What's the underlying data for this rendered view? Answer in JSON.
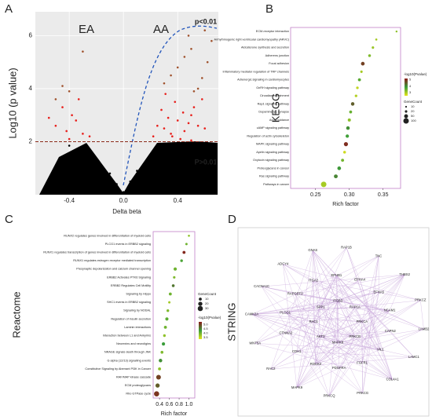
{
  "panel_labels": [
    "A",
    "B",
    "C",
    "D"
  ],
  "chart_data": [
    {
      "type": "scatter",
      "x_label": "Delta beta",
      "y_label": "Log10 (p value)",
      "annotations": [
        "EA",
        "AA",
        "p<0.01",
        "P>0.01"
      ],
      "xlim": [
        -0.65,
        0.7
      ],
      "ylim": [
        0,
        6.9
      ],
      "xticks": [
        -0.4,
        {
          "value": 0,
          "label": "0.0"
        },
        0.4
      ],
      "yticks": [
        2,
        4,
        6
      ],
      "threshold": 2,
      "series": [
        {
          "color": "#e8201c",
          "x": [
            0.22,
            0.3,
            0.35,
            0.4,
            0.45,
            0.5,
            0.55,
            0.28,
            0.33,
            0.38,
            0.42,
            0.48,
            0.52,
            0.6,
            0.25,
            0.31,
            0.36,
            0.44,
            0.5,
            0.58,
            -0.3,
            -0.35,
            -0.4,
            -0.45,
            -0.5,
            -0.25,
            -0.38,
            -0.42,
            -0.55,
            -0.33
          ],
          "y": [
            2.2,
            2.5,
            2.3,
            2.8,
            2.4,
            3.0,
            2.6,
            3.2,
            2.9,
            3.5,
            2.1,
            2.7,
            3.3,
            2.5,
            2.6,
            3.8,
            2.2,
            3.1,
            2.05,
            3.6,
            2.3,
            2.8,
            2.1,
            3.3,
            2.6,
            2.2,
            3.0,
            2.4,
            2.9,
            3.6
          ]
        },
        {
          "color": "#a0522d",
          "x": [
            0.3,
            0.4,
            0.5,
            0.55,
            0.6,
            0.45,
            0.35,
            0.62,
            0.48,
            0.58,
            0.52,
            0.65,
            -0.4,
            -0.5,
            -0.3,
            -0.45
          ],
          "y": [
            4.2,
            4.8,
            5.5,
            4.0,
            6.2,
            5.2,
            4.5,
            5.0,
            6.0,
            4.4,
            3.9,
            5.8,
            3.9,
            3.6,
            5.4,
            4.1
          ]
        },
        {
          "color": "#000000",
          "x": [
            -0.3,
            -0.2,
            -0.1,
            -0.05,
            0.05,
            0.1,
            0.2,
            0.3,
            0.4,
            0.5,
            -0.4,
            -0.15,
            0.15,
            0.25,
            0.35,
            0.45,
            -0.25,
            0.0
          ],
          "y": [
            1.5,
            1.2,
            0.8,
            0.4,
            0.5,
            0.9,
            1.3,
            1.6,
            1.8,
            1.9,
            1.85,
            1.0,
            1.1,
            1.4,
            1.7,
            1.5,
            1.7,
            0.1
          ]
        }
      ]
    },
    {
      "type": "dot",
      "y_label": "KEGG",
      "x_label": "Rich factor",
      "categories": [
        "ECM-receptor interaction",
        "Arrhythmogenic right ventricular cardiomyopathy (ARVC)",
        "Aldosterone synthesis and secretion",
        "Adherens junction",
        "Focal adhesion",
        "Inflammatory mediator regulation of TRP channels",
        "Adrenergic signaling in cardiomyocytes",
        "GnRH signaling pathway",
        "Circadian entrainment",
        "Rap1 signaling pathway",
        "Dopaminergic synapse",
        "Axon guidance",
        "cAMP signaling pathway",
        "Regulation of actin cytoskeleton",
        "MAPK signaling pathway",
        "Apelin signaling pathway",
        "Oxytocin signaling pathway",
        "Proteoglycans in cancer",
        "Ras signaling pathway",
        "Pathways in cancer"
      ],
      "values": [
        0.37,
        0.34,
        0.335,
        0.33,
        0.32,
        0.318,
        0.315,
        0.312,
        0.31,
        0.305,
        0.302,
        0.3,
        0.298,
        0.297,
        0.295,
        0.293,
        0.29,
        0.285,
        0.28,
        0.262
      ],
      "gene_counts": [
        12,
        15,
        20,
        25,
        45,
        20,
        30,
        22,
        22,
        40,
        28,
        32,
        42,
        38,
        55,
        25,
        30,
        45,
        48,
        100
      ],
      "pvalues": [
        3.2,
        3.0,
        3.1,
        3.3,
        4.8,
        3.0,
        3.6,
        2.8,
        2.9,
        4.5,
        3.5,
        3.2,
        4.0,
        3.8,
        5.0,
        2.7,
        3.4,
        3.9,
        4.1,
        3.0
      ],
      "xlim": [
        0.213,
        0.376
      ],
      "xticks": [
        0.25,
        {
          "value": 0.3,
          "label": "0.30"
        },
        0.35
      ],
      "color_title": "-log10(Pvalue)",
      "color_ticks": [
        5,
        4,
        3
      ],
      "clim": [
        2.5,
        5.2
      ],
      "size_title": "GeneCount",
      "size_ticks": [
        10,
        20,
        50,
        100
      ],
      "color_scale": [
        "#e6e619",
        "#3a9d3a",
        "#8b1a1a"
      ]
    },
    {
      "type": "dot",
      "y_label": "Reactome",
      "x_label": "Rich factor",
      "categories": [
        "RUNX2 regulates genes involved in differentiation of myeloid cells",
        "PLCG1 events in ERBB2 signaling",
        "RUNX1 regulates transcription of genes involved in differentiation of myeloid cells",
        "RUNX1 regulates estrogen receptor mediated transcription",
        "Presynaptic depolarization and calcium channel opening",
        "ERBB2 Activates PTK6 Signaling",
        "ERBB2 Regulates Cell Motility",
        "Signaling by Hippo",
        "SHC1 events in ERBB2 signaling",
        "Signaling by NODAL",
        "Regulation of insulin secretion",
        "Laminin interactions",
        "Interaction between L1 and Ankyrins",
        "Neurexins and neuroligins",
        "NRAGE signals death through JNK",
        "G alpha (12/13) signalling events",
        "Constitutive Signaling by Aberrant PI3K in Cancer",
        "RAF/MAP kinase cascade",
        "ECM proteoglycans",
        "Rho GTPase cycle"
      ],
      "values": [
        1.0,
        0.95,
        0.9,
        0.85,
        0.72,
        0.7,
        0.68,
        0.62,
        0.6,
        0.57,
        0.55,
        0.52,
        0.5,
        0.48,
        0.45,
        0.42,
        0.4,
        0.38,
        0.36,
        0.34
      ],
      "gene_counts": [
        5,
        6,
        10,
        8,
        12,
        7,
        9,
        10,
        6,
        8,
        12,
        10,
        8,
        12,
        9,
        14,
        10,
        25,
        20,
        30
      ],
      "pvalues": [
        3.8,
        4.0,
        5.2,
        4.2,
        4.0,
        3.9,
        4.6,
        4.0,
        3.7,
        3.9,
        4.1,
        4.0,
        3.8,
        4.3,
        3.9,
        4.4,
        3.8,
        5.0,
        4.8,
        5.1
      ],
      "xlim": [
        0.27,
        1.12
      ],
      "xticks": [
        0.4,
        0.6,
        0.8,
        {
          "value": 1,
          "label": "1.0"
        }
      ],
      "size_title": "GeneCount",
      "size_ticks": [
        10,
        20,
        30
      ],
      "color_title": "-log10(Pvalue)",
      "color_ticks": [
        {
          "value": 5,
          "label": "5.0"
        },
        4.5,
        {
          "value": 4,
          "label": "4.0"
        },
        3.5
      ],
      "clim": [
        3.3,
        5.3
      ],
      "color_scale": [
        "#e6e619",
        "#3a9d3a",
        "#8b1a1a"
      ]
    }
  ],
  "network": {
    "title": "STRING",
    "nodes": [
      "PRKCA",
      "PRKCB",
      "MAPK8",
      "AKT3",
      "RAC1",
      "SPP1",
      "ITGB3",
      "RAP1A",
      "CAPN2",
      "VIL1",
      "FGFR1",
      "PDGFRA",
      "ROCK2",
      "CDH1",
      "CTNNA2",
      "PLCG1",
      "RAPGEF3",
      "ITGA2",
      "EPHB1",
      "EPHA4",
      "EFNA5",
      "NCAM1",
      "LAMB2",
      "LAMC1",
      "COL4A1",
      "PRKCG",
      "PRKCQ",
      "MAPK9",
      "RAC2",
      "WNT5A",
      "CAMK2A",
      "CACNA1C",
      "ADCY4",
      "GNAS",
      "RAP1B",
      "TNC",
      "THBS2",
      "PRKCZ"
    ]
  }
}
